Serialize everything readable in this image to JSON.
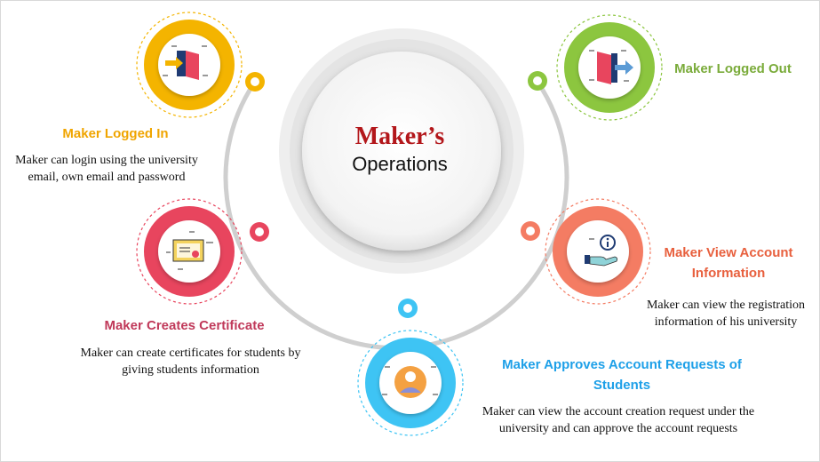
{
  "center": {
    "line1": "Maker’s",
    "line2": "Operations"
  },
  "items": [
    {
      "id": "logged-in",
      "title": "Maker Logged In",
      "description": "Maker can login using the university email, own email and password",
      "color": "#f4b400",
      "icon": "door-enter-icon"
    },
    {
      "id": "creates-certificate",
      "title": "Maker Creates Certificate",
      "description": "Maker can create certificates for students by giving students information",
      "color": "#e8455e",
      "icon": "certificate-icon"
    },
    {
      "id": "approves-requests",
      "title": "Maker Approves Account Requests of Students",
      "description": "Maker can view the account creation request under the university and can approve the account requests",
      "color": "#3ec4f4",
      "icon": "student-avatar-icon"
    },
    {
      "id": "view-account",
      "title": "Maker View Account Information",
      "description": "Maker can view the registration information of his university",
      "color": "#f47c63",
      "icon": "info-hand-icon"
    },
    {
      "id": "logged-out",
      "title": "Maker Logged Out",
      "description": "",
      "color": "#8cc63f",
      "icon": "door-exit-icon"
    }
  ],
  "colors": {
    "yellow_title": "#f0a500",
    "red_title": "#c0395a",
    "blue_title": "#1ea0e8",
    "orange_title": "#e8603e",
    "green_title": "#7aab3a",
    "center_accent": "#b3171b"
  }
}
